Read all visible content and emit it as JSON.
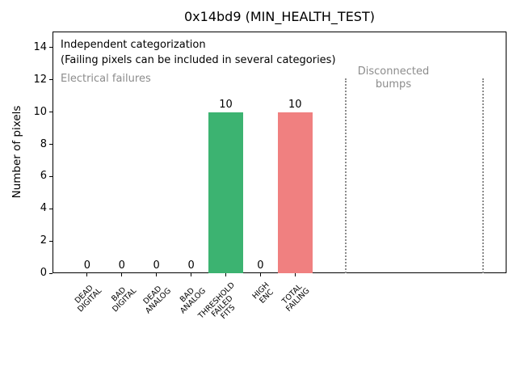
{
  "title": "0x14bd9 (MIN_HEALTH_TEST)",
  "annotations": {
    "independent": "Independent categorization",
    "note": "(Failing pixels can be included in several categories)",
    "electrical": "Electrical failures",
    "disconnected": [
      "Disconnected",
      "bumps"
    ]
  },
  "colors": {
    "bar_green": "#3cb371",
    "bar_red": "#f08080",
    "muted_text": "#8c8c8c",
    "separator_line": "#8c8c8c",
    "axis_text": "#000000"
  },
  "chart_data": {
    "type": "bar",
    "title": "0x14bd9 (MIN_HEALTH_TEST)",
    "xlabel": "",
    "ylabel": "Number of pixels",
    "ylim": [
      0,
      15
    ],
    "xlim": [
      -1,
      12.1
    ],
    "yticks": [
      0,
      2,
      4,
      6,
      8,
      10,
      12,
      14
    ],
    "grid": false,
    "legend": "none",
    "categories": [
      "DEAD DIGITAL",
      "BAD DIGITAL",
      "DEAD ANALOG",
      "BAD ANALOG",
      "THRESHOLD FAILED FITS",
      "HIGH ENC",
      "TOTAL FAILING"
    ],
    "category_label_lines": [
      [
        "DEAD",
        "DIGITAL"
      ],
      [
        "BAD",
        "DIGITAL"
      ],
      [
        "DEAD",
        "ANALOG"
      ],
      [
        "BAD",
        "ANALOG"
      ],
      [
        "THRESHOLD",
        "FAILED",
        "FITS"
      ],
      [
        "HIGH",
        "ENC"
      ],
      [
        "TOTAL",
        "FAILING"
      ]
    ],
    "values": [
      0,
      0,
      0,
      0,
      10,
      0,
      10
    ],
    "bar_value_labels": [
      "0",
      "0",
      "0",
      "0",
      "10",
      "0",
      "10"
    ],
    "bar_colors": [
      "#3cb371",
      "#3cb371",
      "#3cb371",
      "#3cb371",
      "#3cb371",
      "#3cb371",
      "#f08080"
    ],
    "separator_lines_x": [
      7.46,
      11.42
    ],
    "region_left_label": "Electrical failures",
    "region_right_label": "Disconnected bumps"
  }
}
